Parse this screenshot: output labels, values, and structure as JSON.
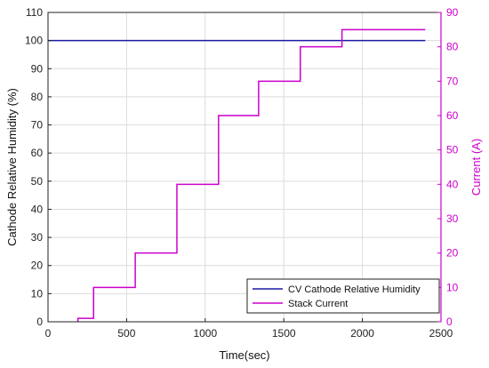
{
  "chart_data": {
    "type": "line",
    "xlabel": "Time(sec)",
    "ylabel_left": "Cathode Relative Humidity (%)",
    "ylabel_right": "Current (A)",
    "xlim": [
      0,
      2500
    ],
    "ylim_left": [
      0,
      110
    ],
    "ylim_right": [
      0,
      90
    ],
    "x_ticks": [
      0,
      500,
      1000,
      1500,
      2000,
      2500
    ],
    "y_left_ticks": [
      0,
      10,
      20,
      30,
      40,
      50,
      60,
      70,
      80,
      90,
      100,
      110
    ],
    "y_right_ticks": [
      0,
      10,
      20,
      30,
      40,
      50,
      60,
      70,
      80,
      90
    ],
    "grid": true,
    "legend_position": "bottom-right",
    "colors": {
      "humidity": "#1a1aa6",
      "current": "#cc00cc"
    },
    "series": [
      {
        "name": "CV Cathode Relative Humidity",
        "axis": "left",
        "x": [
          0,
          2400
        ],
        "y": [
          100,
          100
        ]
      },
      {
        "name": "Stack Current",
        "axis": "right",
        "x": [
          190,
          190,
          290,
          290,
          555,
          555,
          820,
          820,
          1085,
          1085,
          1340,
          1340,
          1605,
          1605,
          1870,
          1870,
          2400
        ],
        "y": [
          0,
          1,
          1,
          10,
          10,
          20,
          20,
          40,
          40,
          60,
          60,
          70,
          70,
          80,
          80,
          85,
          85
        ]
      }
    ]
  }
}
